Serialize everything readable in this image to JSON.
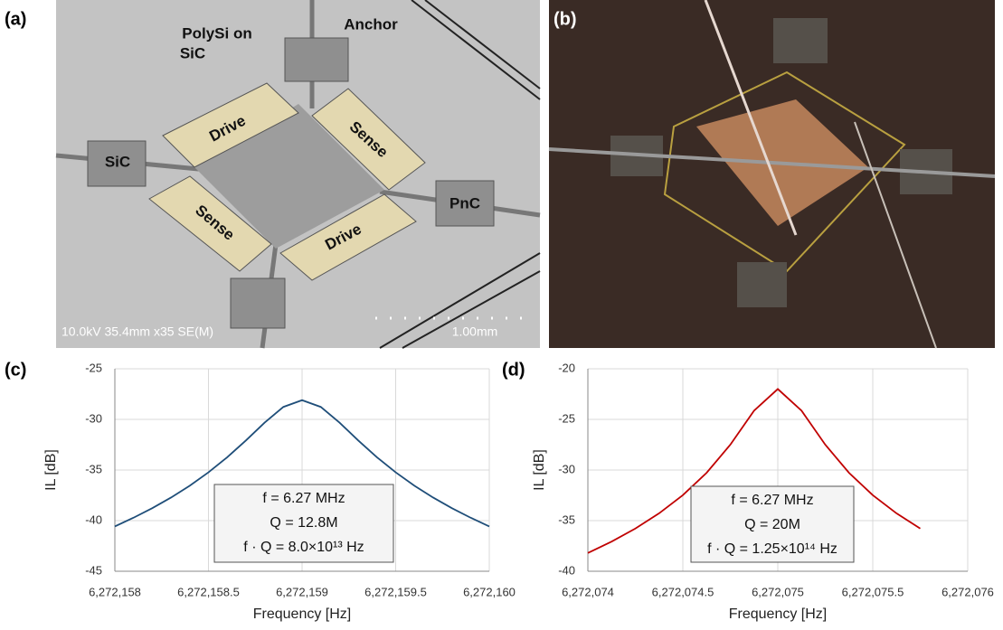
{
  "figure_images": [
    {
      "panel_label": "(a)",
      "labels": {
        "polysi": [
          "PolySi on",
          "SiC"
        ],
        "anchor": "Anchor",
        "drive_top": "Drive",
        "sense_top": "Sense",
        "sic": "SiC",
        "pnc": "PnC",
        "sense_bottom": "Sense",
        "drive_bottom": "Drive",
        "info": "10.0kV 35.4mm x35 SE(M)",
        "scale": "1.00mm"
      }
    },
    {
      "panel_label": "(b)"
    }
  ],
  "chart_data": [
    {
      "type": "line",
      "panel_label": "(c)",
      "x_label": "Frequency [Hz]",
      "y_label": "IL [dB]",
      "x": [
        6272158,
        6272158.1,
        6272158.2,
        6272158.3,
        6272158.4,
        6272158.5,
        6272158.6,
        6272158.7,
        6272158.8,
        6272158.9,
        6272159,
        6272159.1,
        6272159.2,
        6272159.3,
        6272159.4,
        6272159.5,
        6272159.6,
        6272159.7,
        6272159.8,
        6272159.9,
        6272160
      ],
      "values": [
        -40.57,
        -39.71,
        -38.77,
        -37.72,
        -36.55,
        -35.23,
        -33.74,
        -32.08,
        -30.32,
        -28.77,
        -28.1,
        -28.77,
        -30.32,
        -32.08,
        -33.74,
        -35.23,
        -36.55,
        -37.72,
        -38.77,
        -39.71,
        -40.57
      ],
      "color": "#1f4e79",
      "xlim": [
        6272158,
        6272160
      ],
      "xticks": [
        {
          "value": 6272158,
          "label": "6,272,158"
        },
        {
          "value": 6272158.5,
          "label": "6,272,158.5"
        },
        {
          "value": 6272159,
          "label": "6,272,159"
        },
        {
          "value": 6272159.5,
          "label": "6,272,159.5"
        },
        {
          "value": 6272160,
          "label": "6,272,160"
        }
      ],
      "ylim": [
        -45,
        -25
      ],
      "yticks": [
        -45,
        -40,
        -35,
        -30,
        -25
      ],
      "grid": true,
      "annotation": [
        "f = 6.27 MHz",
        "Q = 12.8M",
        "f · Q = 8.0×10¹³ Hz"
      ]
    },
    {
      "type": "line",
      "panel_label": "(d)",
      "x_label": "Frequency [Hz]",
      "y_label": "IL [dB]",
      "x": [
        6272074,
        6272074.125,
        6272074.25,
        6272074.375,
        6272074.5,
        6272074.625,
        6272074.75,
        6272074.875,
        6272075,
        6272075.125,
        6272075.25,
        6272075.375,
        6272075.5,
        6272075.625,
        6272075.75
      ],
      "values": [
        -38.2,
        -37.07,
        -35.78,
        -34.28,
        -32.48,
        -30.28,
        -27.5,
        -24.14,
        -22,
        -24.14,
        -27.5,
        -30.28,
        -32.48,
        -34.28,
        -35.78
      ],
      "color": "#c00000",
      "xlim": [
        6272074,
        6272076
      ],
      "xticks": [
        {
          "value": 6272074,
          "label": "6,272,074"
        },
        {
          "value": 6272074.5,
          "label": "6,272,074.5"
        },
        {
          "value": 6272075,
          "label": "6,272,075"
        },
        {
          "value": 6272075.5,
          "label": "6,272,075.5"
        },
        {
          "value": 6272076,
          "label": "6,272,076"
        }
      ],
      "ylim": [
        -40,
        -20
      ],
      "yticks": [
        -40,
        -35,
        -30,
        -25,
        -20
      ],
      "grid": true,
      "annotation": [
        "f = 6.27 MHz",
        "Q = 20M",
        "f · Q = 1.25×10¹⁴ Hz"
      ]
    }
  ]
}
